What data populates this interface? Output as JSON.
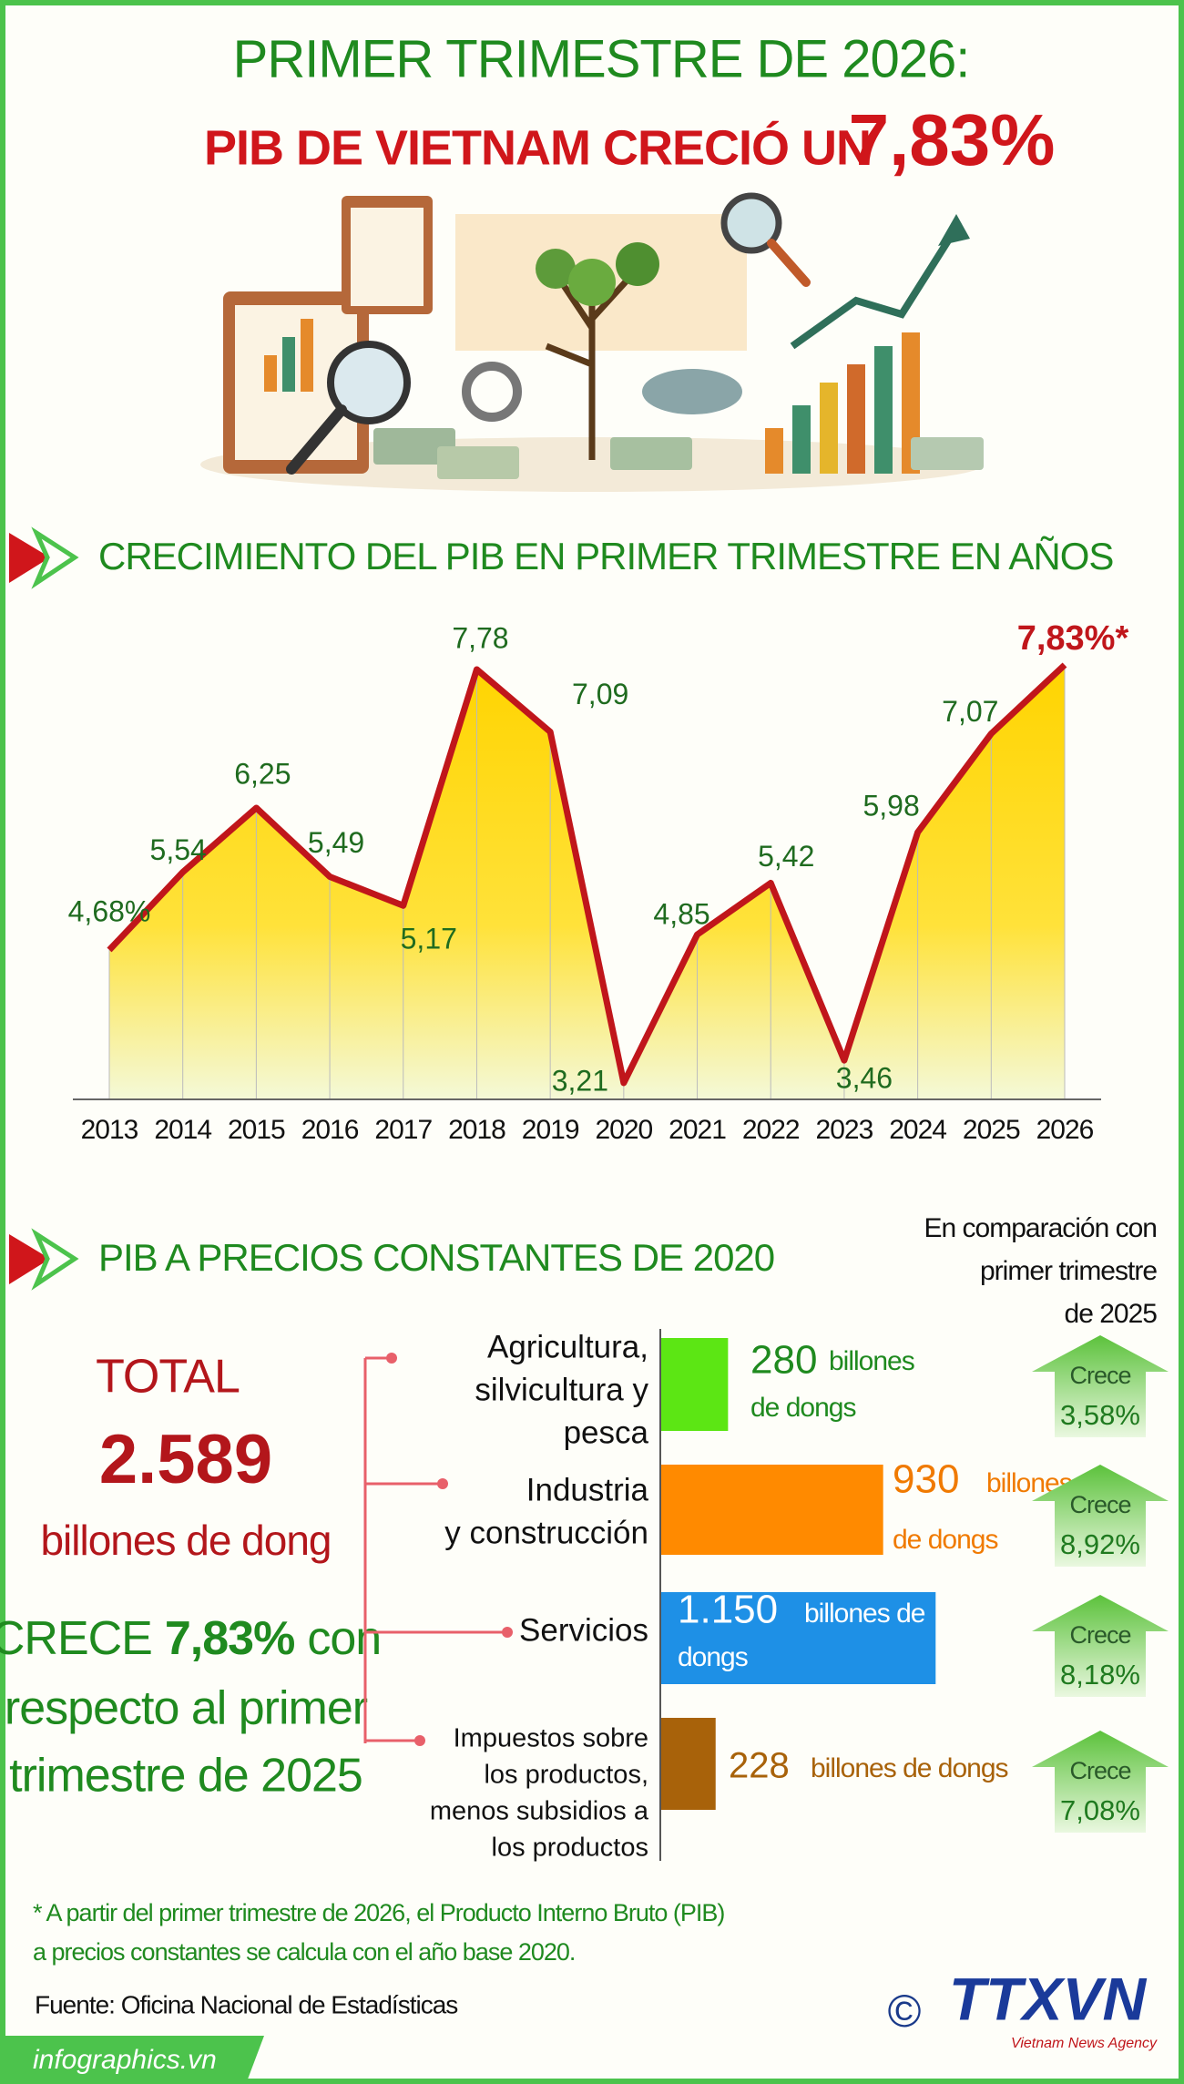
{
  "header": {
    "title": "PRIMER TRIMESTRE DE 2026:",
    "subtitle": "PIB DE  VIETNAM CRECIÓ UN",
    "highlight": "7,83%"
  },
  "chart_data": {
    "type": "line",
    "title": "CRECIMIENTO DEL PIB EN PRIMER TRIMESTRE EN AÑOS",
    "categories": [
      "2013",
      "2014",
      "2015",
      "2016",
      "2017",
      "2018",
      "2019",
      "2020",
      "2021",
      "2022",
      "2023",
      "2024",
      "2025",
      "2026"
    ],
    "values": [
      4.68,
      5.54,
      6.25,
      5.49,
      5.17,
      7.78,
      7.09,
      3.21,
      4.85,
      5.42,
      3.46,
      5.98,
      7.07,
      7.83
    ],
    "value_labels": [
      "4,68%",
      "5,54",
      "6,25",
      "5,49",
      "5,17",
      "7,78",
      "7,09",
      "3,21",
      "4,85",
      "5,42",
      "3,46",
      "5,98",
      "7,07",
      "7,83%*"
    ],
    "color": "#c0161b",
    "fill": "#ffd400"
  },
  "section2": {
    "title": "PIB A PRECIOS CONSTANTES DE 2020",
    "comparison_note": [
      "En comparación con",
      "primer trimestre",
      "de 2025"
    ],
    "total": {
      "label": "TOTAL",
      "value": "2.589",
      "unit": "billones de dong",
      "growth_prefix": "CRECE",
      "growth_value": "7,83%",
      "growth_suffix": "con",
      "growth_lines": [
        "respecto al primer",
        "trimestre de 2025"
      ]
    },
    "sectors": [
      {
        "name_lines": [
          "Agricultura,",
          "silvicultura y",
          "pesca"
        ],
        "value": 280,
        "value_label": "280",
        "unit_lines": [
          "billones",
          "de dongs"
        ],
        "color": "#5ce614",
        "text_color": "#1f8a1f",
        "change_label": "Crece",
        "change": "3,58%"
      },
      {
        "name_lines": [
          "Industria",
          "y construcción"
        ],
        "value": 930,
        "value_label": "930",
        "unit_lines": [
          "billones",
          "de dongs"
        ],
        "color": "#ff8a00",
        "text_color": "#f07a00",
        "change_label": "Crece",
        "change": "8,92%"
      },
      {
        "name_lines": [
          "Servicios"
        ],
        "value": 1150,
        "value_label": "1.150",
        "unit_lines": [
          "billones de",
          "dongs"
        ],
        "color": "#1e90e6",
        "text_color": "#ffffff",
        "change_label": "Crece",
        "change": "8,18%"
      },
      {
        "name_lines": [
          "Impuestos sobre",
          "los productos,",
          "menos subsidios a",
          "los productos"
        ],
        "value": 228,
        "value_label": "228",
        "unit_lines": [
          "billones de dongs"
        ],
        "color": "#a8620a",
        "text_color": "#a8620a",
        "change_label": "Crece",
        "change": "7,08%"
      }
    ]
  },
  "footer": {
    "note_lines": [
      "* A partir del primer trimestre de 2026, el Producto Interno Bruto (PIB)",
      "a precios constantes se calcula con el año base 2020."
    ],
    "source": "Fuente: Oficina Nacional de Estadísticas",
    "copyright": "©",
    "logo": "TTXVN",
    "logo_tagline": "Vietnam News Agency",
    "site": "infographics.vn"
  }
}
